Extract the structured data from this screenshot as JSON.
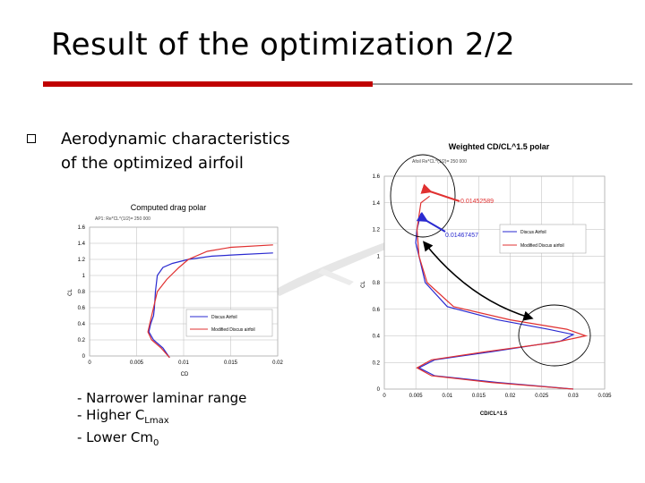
{
  "slide": {
    "title": "Result of the optimization 2/2",
    "bullet_line1": "Aerodynamic characteristics",
    "bullet_line2": "of the optimized airfoil",
    "notes": {
      "line1": "- Narrower laminar range",
      "line2_prefix": "- Higher C",
      "line2_sub": "Lmax",
      "line3_prefix": "- Lower Cm",
      "line3_sub": "0"
    },
    "accent_color": "#c00000"
  },
  "chart_data": [
    {
      "type": "line",
      "title": "Computed drag polar",
      "subtitle": "AP1: Re*CL^(1/2)= 250 000",
      "xlabel": "CD",
      "ylabel": "CL",
      "xlim": [
        0,
        0.02
      ],
      "ylim": [
        0,
        1.6
      ],
      "x_ticks": [
        "0",
        "0.005",
        "0.01",
        "0.015",
        "0.02"
      ],
      "y_ticks": [
        "0",
        "0.2",
        "0.4",
        "0.6",
        "0.8",
        "1",
        "1.2",
        "1.4",
        "1.6"
      ],
      "grid": true,
      "legend": "bottom-right",
      "series": [
        {
          "name": "Discus Airfoil",
          "color": "#2a2ad0",
          "points": [
            [
              0.0085,
              -0.02
            ],
            [
              0.0078,
              0.1
            ],
            [
              0.0068,
              0.2
            ],
            [
              0.0063,
              0.3
            ],
            [
              0.0065,
              0.4
            ],
            [
              0.0068,
              0.5
            ],
            [
              0.0069,
              0.6
            ],
            [
              0.007,
              0.8
            ],
            [
              0.0072,
              1.0
            ],
            [
              0.0078,
              1.1
            ],
            [
              0.0088,
              1.15
            ],
            [
              0.0105,
              1.2
            ],
            [
              0.013,
              1.24
            ],
            [
              0.016,
              1.26
            ],
            [
              0.0195,
              1.28
            ]
          ]
        },
        {
          "name": "Modified Discus airfoil",
          "color": "#e03030",
          "points": [
            [
              0.0085,
              -0.02
            ],
            [
              0.0076,
              0.1
            ],
            [
              0.0066,
              0.2
            ],
            [
              0.0062,
              0.3
            ],
            [
              0.0064,
              0.4
            ],
            [
              0.0066,
              0.5
            ],
            [
              0.0068,
              0.6
            ],
            [
              0.0072,
              0.8
            ],
            [
              0.0082,
              0.95
            ],
            [
              0.0095,
              1.1
            ],
            [
              0.0105,
              1.2
            ],
            [
              0.0125,
              1.3
            ],
            [
              0.015,
              1.35
            ],
            [
              0.0195,
              1.38
            ]
          ]
        }
      ]
    },
    {
      "type": "line",
      "title": "Weighted CD/CL^1.5 polar",
      "subtitle": "Afoil Re*CL^(1/2)= 250 000",
      "xlabel": "CD/CL^1.5",
      "ylabel": "CL",
      "xlim": [
        0,
        0.035
      ],
      "ylim": [
        0,
        1.6
      ],
      "x_ticks": [
        "0",
        "0.005",
        "0.01",
        "0.015",
        "0.02",
        "0.025",
        "0.03",
        "0.035"
      ],
      "y_ticks": [
        "0",
        "0.2",
        "0.4",
        "0.6",
        "0.8",
        "1",
        "1.2",
        "1.4",
        "1.6"
      ],
      "grid": true,
      "legend": "right",
      "annotations": [
        {
          "text": "0.01452589",
          "color": "#e03030"
        },
        {
          "text": "0.01467457",
          "color": "#2a2ad0"
        }
      ],
      "series": [
        {
          "name": "Discus Airfoil",
          "color": "#2a2ad0",
          "points": [
            [
              0.03,
              0.0
            ],
            [
              0.018,
              0.05
            ],
            [
              0.008,
              0.1
            ],
            [
              0.0055,
              0.16
            ],
            [
              0.008,
              0.22
            ],
            [
              0.017,
              0.28
            ],
            [
              0.028,
              0.36
            ],
            [
              0.03,
              0.41
            ],
            [
              0.026,
              0.45
            ],
            [
              0.018,
              0.52
            ],
            [
              0.01,
              0.62
            ],
            [
              0.0065,
              0.8
            ],
            [
              0.0055,
              1.0
            ],
            [
              0.005,
              1.1
            ],
            [
              0.0052,
              1.2
            ],
            [
              0.0058,
              1.32
            ]
          ]
        },
        {
          "name": "Modified Discus airfoil",
          "color": "#e03030",
          "points": [
            [
              0.03,
              0.0
            ],
            [
              0.017,
              0.05
            ],
            [
              0.0075,
              0.1
            ],
            [
              0.0052,
              0.16
            ],
            [
              0.0075,
              0.22
            ],
            [
              0.016,
              0.28
            ],
            [
              0.027,
              0.35
            ],
            [
              0.032,
              0.4
            ],
            [
              0.029,
              0.45
            ],
            [
              0.02,
              0.52
            ],
            [
              0.011,
              0.62
            ],
            [
              0.0068,
              0.8
            ],
            [
              0.0055,
              1.0
            ],
            [
              0.0052,
              1.2
            ],
            [
              0.0058,
              1.4
            ],
            [
              0.0072,
              1.45
            ]
          ]
        }
      ]
    }
  ]
}
